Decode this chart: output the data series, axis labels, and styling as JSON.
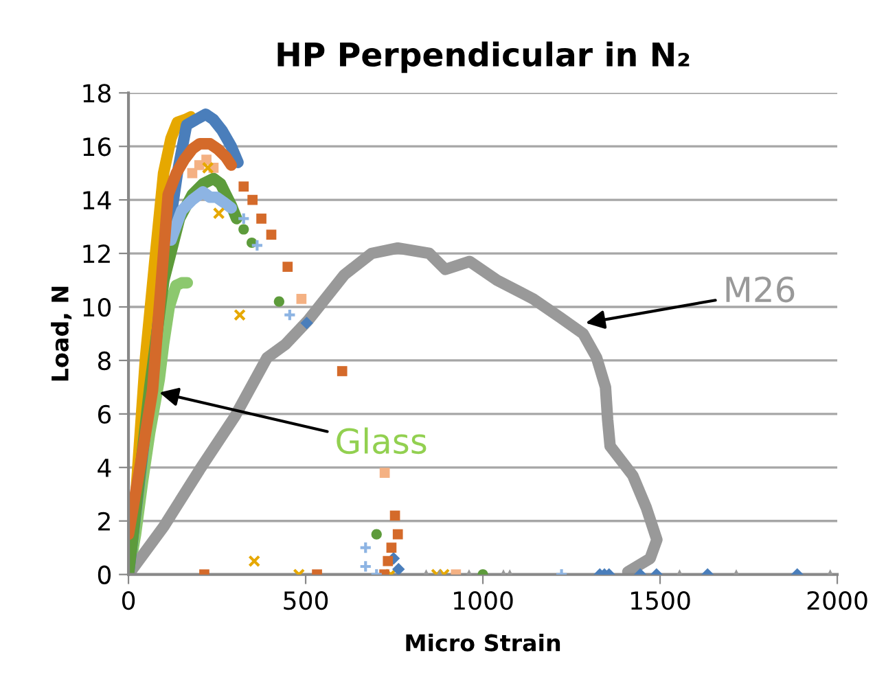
{
  "chart_data": {
    "type": "scatter",
    "title": "HP Perpendicular in N₂",
    "xlabel": "Micro Strain",
    "ylabel": "Load, N",
    "xlim": [
      0,
      2000
    ],
    "xticks": [
      0,
      500,
      1000,
      1500,
      2000
    ],
    "ylim": [
      0,
      18
    ],
    "yticks": [
      0,
      2,
      4,
      6,
      8,
      10,
      12,
      14,
      16,
      18
    ],
    "grid": "y",
    "legend": false,
    "series": [
      {
        "type": "line",
        "color": "#8cc86e",
        "marker": "none",
        "x": [
          0,
          20,
          40,
          60,
          87,
          99,
          115,
          134,
          150,
          166
        ],
        "values": [
          0,
          1.5,
          3.5,
          5.3,
          7.3,
          8.6,
          10.0,
          10.8,
          10.9,
          10.9
        ]
      },
      {
        "type": "line",
        "color": "#999999",
        "marker": "none",
        "x": [
          0,
          100,
          200,
          300,
          391,
          443,
          507,
          609,
          686,
          760,
          849,
          894,
          963,
          1040,
          1142,
          1219,
          1283,
          1321,
          1346,
          1352,
          1359,
          1423,
          1461,
          1491,
          1472,
          1409
        ],
        "values": [
          0,
          1.8,
          3.9,
          5.9,
          8.1,
          8.6,
          9.5,
          11.2,
          12.0,
          12.2,
          12.0,
          11.4,
          11.7,
          11.0,
          10.3,
          9.6,
          9.0,
          8.1,
          7.0,
          5.8,
          4.8,
          3.7,
          2.5,
          1.3,
          0.6,
          0.1
        ]
      },
      {
        "type": "line",
        "color": "#e6a800",
        "marker": "none",
        "x": [
          0,
          20,
          48,
          75,
          99,
          120,
          138,
          160,
          176,
          182
        ],
        "values": [
          1.0,
          2.8,
          8.1,
          11.8,
          15.0,
          16.3,
          16.9,
          17.0,
          17.1,
          17.0
        ]
      },
      {
        "type": "line",
        "color": "#4a7ebb",
        "marker": "none",
        "x": [
          0,
          40,
          73,
          105,
          138,
          164,
          190,
          218,
          240,
          264,
          290,
          309
        ],
        "values": [
          0,
          4.5,
          8.1,
          12.0,
          15.0,
          16.8,
          17.0,
          17.2,
          17.0,
          16.6,
          16.0,
          15.4
        ]
      },
      {
        "type": "line",
        "color": "#5d9b3b",
        "marker": "none",
        "x": [
          0,
          30,
          60,
          100,
          144,
          180,
          210,
          240,
          260,
          275,
          290,
          305
        ],
        "values": [
          0,
          3.5,
          7.0,
          11.0,
          13.3,
          14.2,
          14.6,
          14.8,
          14.6,
          14.2,
          13.8,
          13.3
        ]
      },
      {
        "type": "line",
        "color": "#8db4e3",
        "marker": "none",
        "x": [
          120,
          150,
          180,
          210,
          230,
          248,
          270,
          290
        ],
        "values": [
          12.5,
          13.6,
          14.0,
          14.3,
          14.1,
          14.1,
          13.9,
          13.7
        ]
      },
      {
        "type": "line",
        "color": "#d46a2a",
        "marker": "none",
        "x": [
          0,
          35,
          68,
          90,
          112,
          135,
          157,
          180,
          201,
          230,
          252,
          275,
          290
        ],
        "values": [
          1.5,
          4.2,
          6.9,
          10.5,
          14.2,
          15.0,
          15.5,
          15.9,
          16.1,
          16.1,
          15.9,
          15.6,
          15.3
        ]
      },
      {
        "color": "#f4b183",
        "marker": "square",
        "x": [
          180,
          200,
          220,
          240,
          488,
          723,
          740,
          750,
          924
        ],
        "values": [
          15.0,
          15.3,
          15.5,
          15.2,
          10.3,
          3.8,
          null,
          null,
          0
        ]
      },
      {
        "color": "#e6a800",
        "marker": "cross",
        "x": [
          224,
          255,
          314,
          355,
          481,
          740,
          870,
          890
        ],
        "values": [
          15.2,
          13.5,
          9.7,
          0.5,
          0,
          0,
          0,
          0
        ]
      },
      {
        "color": "#4a7ebb",
        "marker": "diamond",
        "x": [
          503,
          748,
          762,
          1330,
          1343,
          1356,
          1444,
          1490,
          1634,
          1887
        ],
        "values": [
          9.4,
          0.6,
          0.2,
          0,
          0,
          0,
          0,
          0,
          0,
          0
        ]
      },
      {
        "color": "#d46a2a",
        "marker": "square",
        "x": [
          214,
          325,
          350,
          375,
          403,
          449,
          532,
          603,
          722,
          732,
          742,
          752,
          760
        ],
        "values": [
          0,
          14.5,
          14.0,
          13.3,
          12.7,
          11.5,
          0,
          7.6,
          0,
          0.5,
          1.0,
          2.2,
          1.5
        ]
      },
      {
        "color": "#5d9b3b",
        "marker": "circle",
        "x": [
          325,
          348,
          425,
          700,
          1000
        ],
        "values": [
          12.9,
          12.4,
          10.2,
          1.5,
          0
        ]
      },
      {
        "color": "#8db4e3",
        "marker": "plus",
        "x": [
          325,
          363,
          455,
          669,
          669,
          700,
          1222
        ],
        "values": [
          13.3,
          12.3,
          9.7,
          1.0,
          0.3,
          0,
          0
        ]
      },
      {
        "color": "#999999",
        "marker": "triangle",
        "x": [
          840,
          878,
          961,
          1058,
          1076,
          1555,
          1715,
          1980
        ],
        "values": [
          0,
          0,
          0,
          0,
          0,
          0,
          0,
          0
        ]
      }
    ],
    "annotations": [
      {
        "text": "Glass",
        "x": 87,
        "y": 6.8
      },
      {
        "text": "M26",
        "x": 1290,
        "y": 9.4
      }
    ]
  }
}
